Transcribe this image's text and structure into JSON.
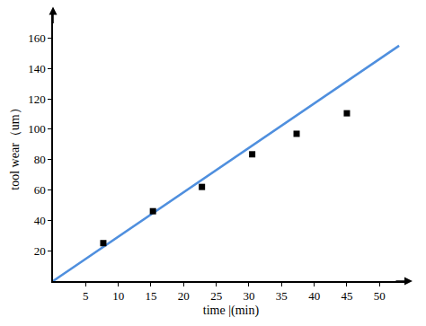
{
  "chart_data": {
    "type": "line",
    "x_label": "time |(min)",
    "y_label": "tool wear（um）",
    "xlim": [
      0,
      54.5
    ],
    "ylim": [
      0,
      178
    ],
    "xticks": [
      5,
      10,
      15,
      20,
      25,
      30,
      35,
      40,
      45,
      50
    ],
    "yticks": [
      20,
      40,
      60,
      80,
      100,
      120,
      140,
      160
    ],
    "grid": false,
    "series": [
      {
        "type": "line",
        "color": "#4f8fde",
        "line_style": "solid",
        "x": [
          0,
          53
        ],
        "values": [
          0,
          155
        ]
      },
      {
        "type": "scatter",
        "color": "#000000",
        "marker": "square",
        "x": [
          7.7,
          15.3,
          22.8,
          30.5,
          37.3,
          45
        ],
        "values": [
          25,
          46,
          62,
          83.5,
          97,
          110.5
        ]
      }
    ]
  }
}
